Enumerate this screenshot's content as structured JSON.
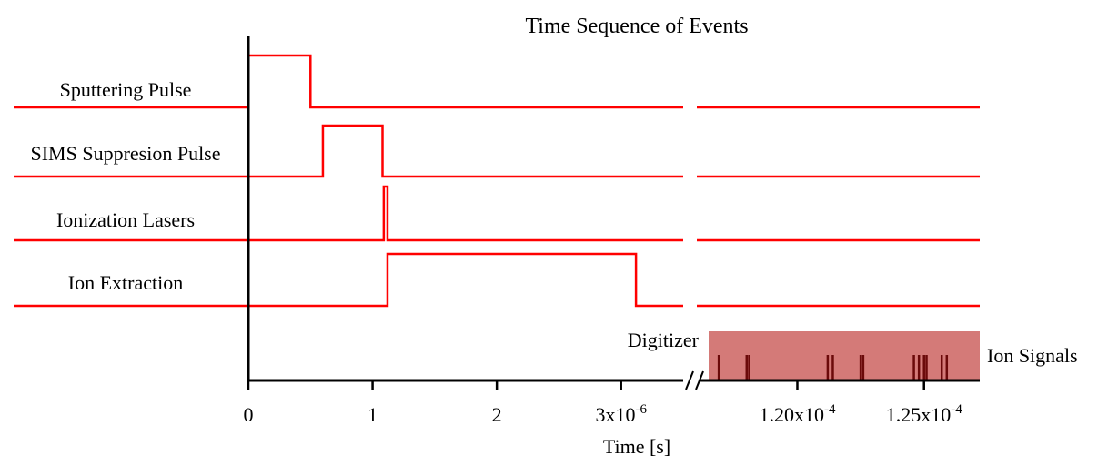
{
  "chart_data": {
    "type": "line",
    "title": "Time Sequence of Events",
    "xlabel": "Time [s]",
    "ylabel": "",
    "grid": false,
    "color": "#ff0000",
    "xlim_left": [
      0,
      3.5e-06
    ],
    "xlim_right": [
      0.0001165,
      0.0001272
    ],
    "ticks_left": [
      {
        "value": 0,
        "label": "0",
        "exp": ""
      },
      {
        "value": 1e-06,
        "label": "1",
        "exp": ""
      },
      {
        "value": 2e-06,
        "label": "2",
        "exp": ""
      },
      {
        "value": 3e-06,
        "label": "3x10",
        "exp": "-6"
      }
    ],
    "ticks_right": [
      {
        "value": 0.00012,
        "label": "1.20x10",
        "exp": "-4"
      },
      {
        "value": 0.000125,
        "label": "1.25x10",
        "exp": "-4"
      }
    ],
    "series": [
      {
        "name": "Sputtering Pulse",
        "pulses": [
          [
            0,
            5e-07
          ]
        ]
      },
      {
        "name": "SIMS Suppresion Pulse",
        "pulses": [
          [
            6e-07,
            1.08e-06
          ]
        ]
      },
      {
        "name": "Ionization Lasers",
        "pulses": [
          [
            1.09e-06,
            1.12e-06
          ]
        ]
      },
      {
        "name": "Ion Extraction",
        "pulses": [
          [
            1.12e-06,
            3.12e-06
          ]
        ]
      }
    ],
    "digitizer": {
      "label": "Digitizer",
      "range": [
        0.0001165,
        0.0001272
      ],
      "fill_color": "#d47a78",
      "signal_color": "#6b0a0a",
      "signals_label": "Ion Signals",
      "signals": [
        0.0001169,
        0.000118,
        0.0001181,
        0.0001212,
        0.0001214,
        0.0001225,
        0.0001226,
        0.0001246,
        0.0001248,
        0.000125,
        0.0001251,
        0.0001257,
        0.0001259
      ]
    }
  }
}
